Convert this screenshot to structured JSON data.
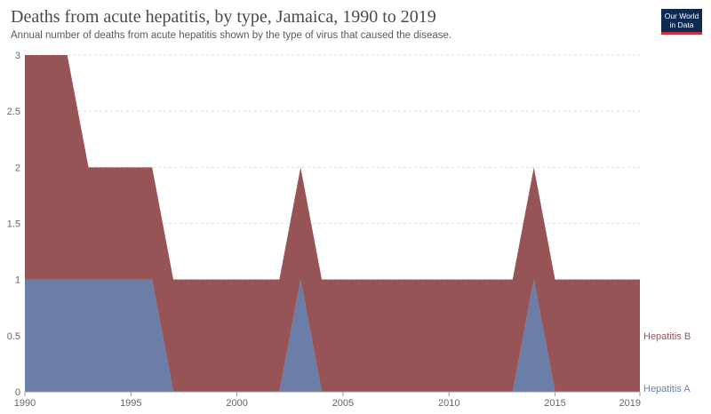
{
  "header": {
    "title": "Deaths from acute hepatitis, by type, Jamaica, 1990 to 2019",
    "subtitle": "Annual number of deaths from acute hepatitis shown by the type of virus that caused the disease."
  },
  "logo": {
    "line1": "Our World",
    "line2": "in Data"
  },
  "colors": {
    "hepatitis_a": "#6b7ea8",
    "hepatitis_b": "#975457",
    "grid": "#dddddd",
    "axis": "#999999"
  },
  "chart_data": {
    "type": "area",
    "stacked": true,
    "title": "Deaths from acute hepatitis, by type, Jamaica, 1990 to 2019",
    "x": [
      1990,
      1991,
      1992,
      1993,
      1994,
      1995,
      1996,
      1997,
      1998,
      1999,
      2000,
      2001,
      2002,
      2003,
      2004,
      2005,
      2006,
      2007,
      2008,
      2009,
      2010,
      2011,
      2012,
      2013,
      2014,
      2015,
      2016,
      2017,
      2018,
      2019
    ],
    "series": [
      {
        "name": "Hepatitis A",
        "color": "#6b7ea8",
        "values": [
          1,
          1,
          1,
          1,
          1,
          1,
          1,
          0,
          0,
          0,
          0,
          0,
          0,
          1,
          0,
          0,
          0,
          0,
          0,
          0,
          0,
          0,
          0,
          0,
          1,
          0,
          0,
          0,
          0,
          0
        ]
      },
      {
        "name": "Hepatitis B",
        "color": "#975457",
        "values": [
          2,
          2,
          2,
          1,
          1,
          1,
          1,
          1,
          1,
          1,
          1,
          1,
          1,
          1,
          1,
          1,
          1,
          1,
          1,
          1,
          1,
          1,
          1,
          1,
          1,
          1,
          1,
          1,
          1,
          1
        ]
      }
    ],
    "xlim": [
      1990,
      2019
    ],
    "ylim": [
      0,
      3
    ],
    "yticks": [
      0,
      0.5,
      1,
      1.5,
      2,
      2.5,
      3
    ],
    "ytick_labels": [
      "0",
      "0.5",
      "1",
      "1.5",
      "2",
      "2.5",
      "3"
    ],
    "xticks": [
      1990,
      1995,
      2000,
      2005,
      2010,
      2015,
      2019
    ],
    "xtick_labels": [
      "1990",
      "1995",
      "2000",
      "2005",
      "2010",
      "2015",
      "2019"
    ],
    "grid": true,
    "legend": "right"
  }
}
